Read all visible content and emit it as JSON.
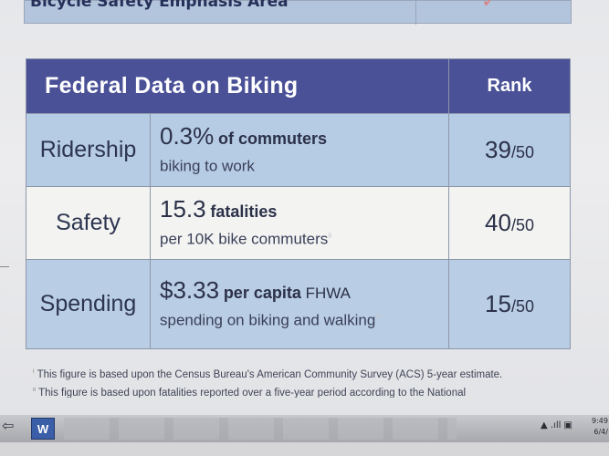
{
  "top_row": {
    "text": "Bicycle Safety Emphasis Area",
    "mark": "✓"
  },
  "table": {
    "header": {
      "title": "Federal Data on Biking",
      "rank": "Rank"
    },
    "rows": [
      {
        "category": "Ridership",
        "value": "0.3%",
        "value_suffix": "of commuters",
        "subtitle": "biking to work",
        "footnote_mark": "i",
        "rank": "39",
        "rank_of": "/50"
      },
      {
        "category": "Safety",
        "value": "15.3",
        "value_suffix": "fatalities",
        "subtitle": "per 10K bike commuters",
        "footnote_mark": "ii",
        "rank": "40",
        "rank_of": "/50"
      },
      {
        "category": "Spending",
        "value": "$3.33",
        "value_suffix": "per capita",
        "value_extra": "FHWA",
        "subtitle": "spending on biking and walking",
        "footnote_mark": "iii",
        "rank": "15",
        "rank_of": "/50"
      }
    ]
  },
  "footnotes": [
    {
      "mark": "i",
      "text": "This figure is based upon the Census Bureau's American Community Survey (ACS) 5-year estimate."
    },
    {
      "mark": "ii",
      "text": "This figure is based upon fatalities reported over a five-year period according to the National"
    }
  ],
  "taskbar": {
    "app_icon": "W",
    "tray_text": "▲ .ıll ▣",
    "clock_time": "9:49",
    "clock_date": "6/4/"
  }
}
